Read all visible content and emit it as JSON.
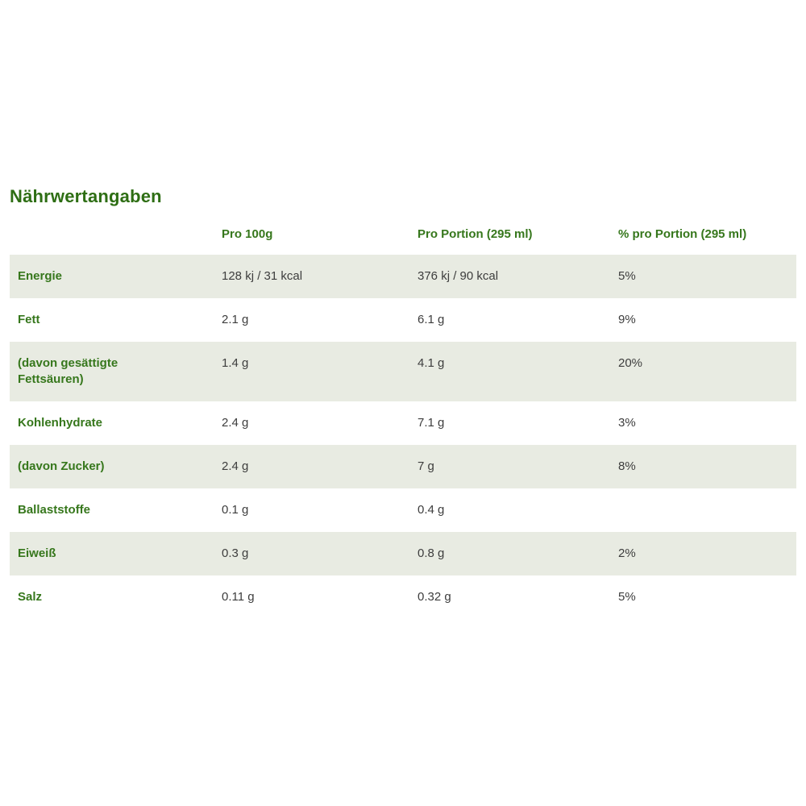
{
  "page": {
    "title": "Nährwertangaben"
  },
  "colors": {
    "title_green": "#2e6e14",
    "label_green": "#36771c",
    "value_gray": "#3d3d3d",
    "row_shade": "#e8ebe2",
    "background": "#ffffff"
  },
  "table": {
    "columns": {
      "label": "",
      "per100": "Pro 100g",
      "portion": "Pro Portion (295 ml)",
      "percent": "% pro Portion (295 ml)"
    },
    "rows": [
      {
        "label": "Energie",
        "per100": "128 kj / 31 kcal",
        "portion": "376 kj / 90 kcal",
        "percent": "5%"
      },
      {
        "label": "Fett",
        "per100": "2.1 g",
        "portion": "6.1 g",
        "percent": "9%"
      },
      {
        "label": "(davon gesättigte Fettsäuren)",
        "per100": "1.4 g",
        "portion": "4.1 g",
        "percent": "20%"
      },
      {
        "label": "Kohlenhydrate",
        "per100": "2.4 g",
        "portion": "7.1 g",
        "percent": "3%"
      },
      {
        "label": "(davon Zucker)",
        "per100": "2.4 g",
        "portion": "7 g",
        "percent": "8%"
      },
      {
        "label": "Ballaststoffe",
        "per100": "0.1 g",
        "portion": "0.4 g",
        "percent": ""
      },
      {
        "label": "Eiweiß",
        "per100": "0.3 g",
        "portion": "0.8 g",
        "percent": "2%"
      },
      {
        "label": "Salz",
        "per100": "0.11 g",
        "portion": "0.32 g",
        "percent": "5%"
      }
    ]
  }
}
